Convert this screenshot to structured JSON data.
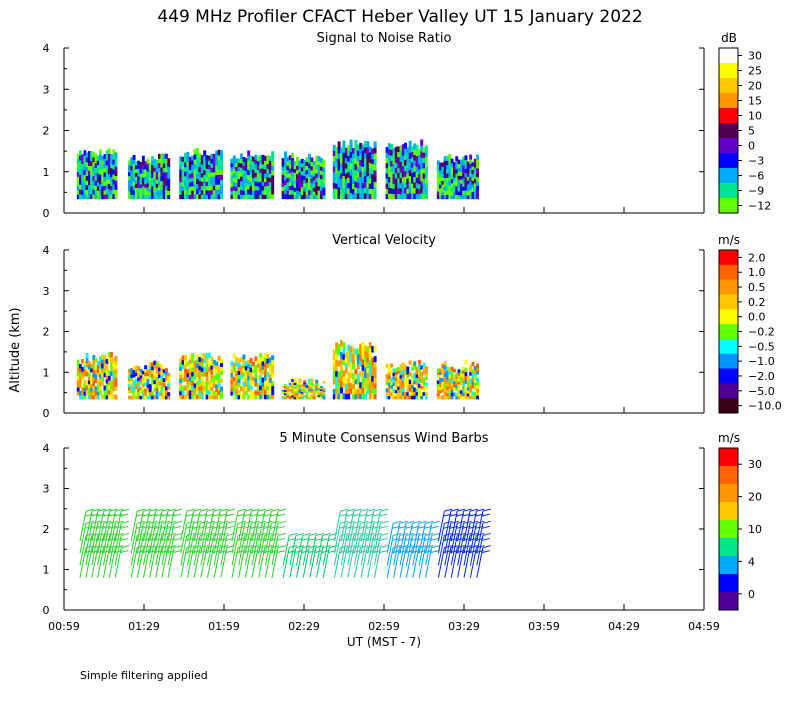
{
  "title": "449 MHz Profiler CFACT Heber Valley UT 15 January 2022",
  "ylabel_shared": "Altitude (km)",
  "footer_note": "Simple filtering applied",
  "xlabel": "UT  (MST - 7)",
  "x_ticks": [
    "00:59",
    "01:29",
    "01:59",
    "02:29",
    "02:59",
    "03:29",
    "03:59",
    "04:29",
    "04:59"
  ],
  "chart_data": [
    {
      "type": "heatmap",
      "title": "Signal to Noise Ratio",
      "ylabel": "Altitude (km)",
      "ylim": [
        0,
        4
      ],
      "y_ticks": [
        "0",
        "1",
        "2",
        "3",
        "4"
      ],
      "unit": "dB",
      "colorbar": {
        "labels": [
          "30",
          "25",
          "20",
          "15",
          "10",
          "5",
          "0",
          "−3",
          "−6",
          "−9",
          "−12"
        ],
        "colors": [
          "#ffffff",
          "#ffff00",
          "#ffc800",
          "#ff9600",
          "#ff0000",
          "#500050",
          "#6400c8",
          "#0000ff",
          "#00aaff",
          "#00e68c",
          "#64ff00"
        ]
      },
      "segments": [
        {
          "start": 0.08,
          "end": 0.33,
          "bottom": 0.35,
          "top": 1.6
        },
        {
          "start": 0.4,
          "end": 0.66,
          "bottom": 0.35,
          "top": 1.45
        },
        {
          "start": 0.72,
          "end": 0.99,
          "bottom": 0.35,
          "top": 1.6
        },
        {
          "start": 1.04,
          "end": 1.31,
          "bottom": 0.35,
          "top": 1.55
        },
        {
          "start": 1.36,
          "end": 1.63,
          "bottom": 0.35,
          "top": 1.5
        },
        {
          "start": 1.68,
          "end": 1.95,
          "bottom": 0.35,
          "top": 1.8
        },
        {
          "start": 2.01,
          "end": 2.27,
          "bottom": 0.35,
          "top": 1.8
        },
        {
          "start": 2.33,
          "end": 2.59,
          "bottom": 0.35,
          "top": 1.45
        }
      ]
    },
    {
      "type": "heatmap",
      "title": "Vertical Velocity",
      "ylabel": "Altitude (km)",
      "ylim": [
        0,
        4
      ],
      "y_ticks": [
        "0",
        "1",
        "2",
        "3",
        "4"
      ],
      "unit": "m/s",
      "colorbar": {
        "labels": [
          "2.0",
          "1.0",
          "0.5",
          "0.2",
          "0.0",
          "−0.2",
          "−0.5",
          "−1.0",
          "−2.0",
          "−5.0",
          "−10.0"
        ],
        "colors": [
          "#ff0000",
          "#ff6400",
          "#ff9600",
          "#ffc800",
          "#ffff00",
          "#64ff00",
          "#00ffff",
          "#0096ff",
          "#0000ff",
          "#500096",
          "#3c0014"
        ]
      },
      "segments": [
        {
          "start": 0.08,
          "end": 0.33,
          "bottom": 0.35,
          "top": 1.5
        },
        {
          "start": 0.4,
          "end": 0.66,
          "bottom": 0.35,
          "top": 1.3
        },
        {
          "start": 0.72,
          "end": 0.99,
          "bottom": 0.35,
          "top": 1.5
        },
        {
          "start": 1.04,
          "end": 1.31,
          "bottom": 0.35,
          "top": 1.5
        },
        {
          "start": 1.36,
          "end": 1.63,
          "bottom": 0.35,
          "top": 0.9
        },
        {
          "start": 1.68,
          "end": 1.95,
          "bottom": 0.35,
          "top": 1.8
        },
        {
          "start": 2.01,
          "end": 2.27,
          "bottom": 0.35,
          "top": 1.3
        },
        {
          "start": 2.33,
          "end": 2.59,
          "bottom": 0.35,
          "top": 1.3
        }
      ]
    },
    {
      "type": "scatter",
      "title": "5 Minute Consensus Wind Barbs",
      "ylabel": "Altitude (km)",
      "ylim": [
        0,
        4
      ],
      "y_ticks": [
        "0",
        "1",
        "2",
        "3",
        "4"
      ],
      "unit": "m/s",
      "colorbar": {
        "labels": [
          "30",
          "20",
          "10",
          "4",
          "0"
        ],
        "colors": [
          "#ff0000",
          "#ff6400",
          "#ff9600",
          "#ffc800",
          "#64ff00",
          "#00e68c",
          "#00aaff",
          "#0000ff",
          "#500096"
        ]
      },
      "barb_groups": [
        {
          "start": 0.1,
          "end": 0.32,
          "top": 1.9,
          "color": "#28d228"
        },
        {
          "start": 0.42,
          "end": 0.65,
          "top": 1.8,
          "color": "#28d228"
        },
        {
          "start": 0.73,
          "end": 0.98,
          "top": 1.9,
          "color": "#28d228"
        },
        {
          "start": 1.05,
          "end": 1.3,
          "top": 1.9,
          "color": "#28d228"
        },
        {
          "start": 1.37,
          "end": 1.62,
          "top": 1.2,
          "color": "#00c864"
        },
        {
          "start": 1.69,
          "end": 1.94,
          "top": 1.8,
          "color": "#28c8a0"
        },
        {
          "start": 2.02,
          "end": 2.26,
          "top": 1.6,
          "color": "#00a0f0"
        },
        {
          "start": 2.34,
          "end": 2.58,
          "top": 1.7,
          "color": "#0028e6"
        }
      ]
    }
  ]
}
